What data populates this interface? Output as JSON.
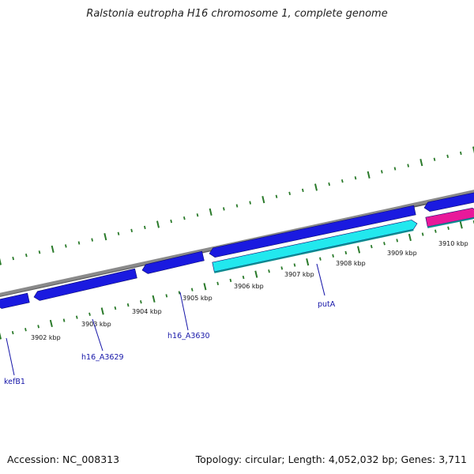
{
  "title": "Ralstonia eutropha H16 chromosome 1, complete genome",
  "footer": {
    "accession": "Accession: NC_008313",
    "stats": "Topology: circular; Length: 4,052,032 bp; Genes: 3,711"
  },
  "colors": {
    "backbone": "#8a8a8a",
    "gene_blue": "#1a1ae0",
    "gene_cyan": "#22e8ee",
    "gene_magenta": "#e8199a",
    "ticks": "#2a7a2a",
    "labels": "#1515a8"
  },
  "scale": {
    "unit": "kbp",
    "labels": [
      "3902 kbp",
      "3903 kbp",
      "3904 kbp",
      "3905 kbp",
      "3906 kbp",
      "3907 kbp",
      "3908 kbp",
      "3909 kbp",
      "3910 kbp"
    ]
  },
  "genes": [
    {
      "strand": "reverse",
      "color": "blue"
    },
    {
      "strand": "reverse",
      "color": "blue"
    },
    {
      "strand": "reverse",
      "color": "blue"
    },
    {
      "strand": "reverse",
      "color": "blue"
    },
    {
      "strand": "reverse",
      "color": "blue"
    },
    {
      "strand": "reverse",
      "color": "blue"
    },
    {
      "strand": "forward",
      "color": "cyan"
    },
    {
      "strand": "forward",
      "color": "magenta"
    }
  ],
  "gene_labels": [
    "kefB1",
    "h16_A3629",
    "h16_A3630",
    "putA"
  ]
}
